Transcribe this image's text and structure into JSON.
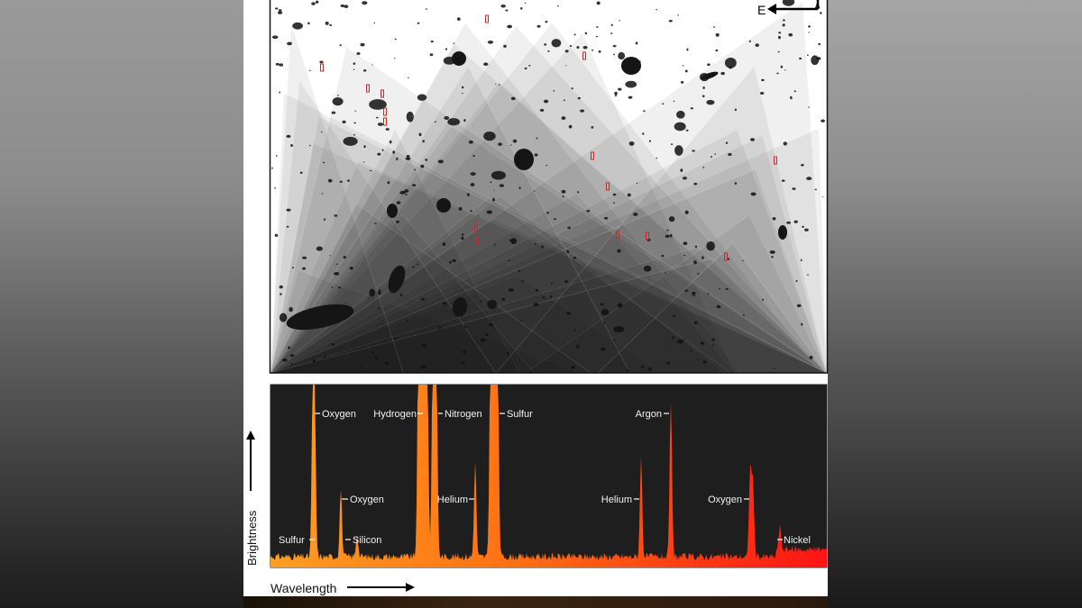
{
  "compass": {
    "label": "E"
  },
  "axes": {
    "x_label": "Wavelength",
    "y_label": "Brightness"
  },
  "spectrum_labels": [
    {
      "text": "Sulfur"
    },
    {
      "text": "Oxygen"
    },
    {
      "text": "Oxygen"
    },
    {
      "text": "Silicon"
    },
    {
      "text": "Hydrogen"
    },
    {
      "text": "Nitrogen"
    },
    {
      "text": "Helium"
    },
    {
      "text": "Sulfur"
    },
    {
      "text": "Argon"
    },
    {
      "text": "Helium"
    },
    {
      "text": "Oxygen"
    },
    {
      "text": "Nickel"
    }
  ],
  "colors": {
    "spectrum_start": "#ff9a1e",
    "spectrum_mid": "#ff6a10",
    "spectrum_end": "#ff1a1a",
    "plot_bg": "#1e1e1e",
    "slit_marker": "#c8282a"
  }
}
